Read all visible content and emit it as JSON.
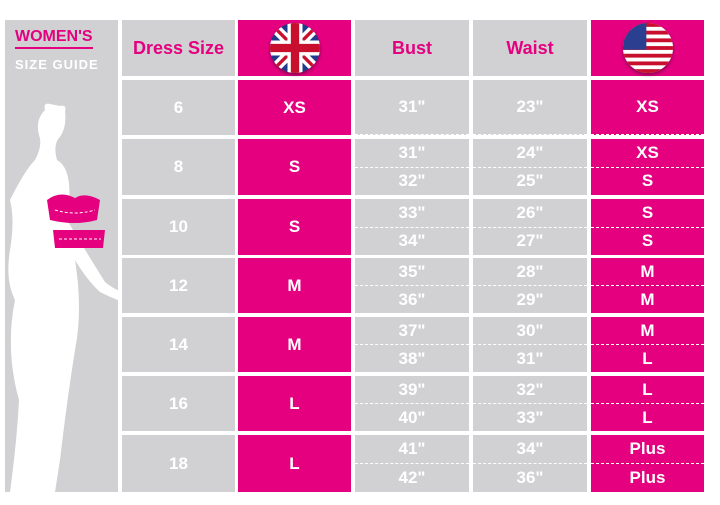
{
  "title": {
    "line1": "WOMEN'S",
    "line2": "SIZE GUIDE"
  },
  "colors": {
    "accent": "#e4007f",
    "panel": "#d1d1d3"
  },
  "headers": {
    "dress_size": "Dress Size",
    "uk": "uk-flag-icon",
    "bust": "Bust",
    "waist": "Waist",
    "us": "us-flag-icon"
  },
  "rows": [
    {
      "dress": "6",
      "uk": "XS",
      "bust": [
        "31\""
      ],
      "waist": [
        "23\""
      ],
      "us": [
        "XS"
      ]
    },
    {
      "dress": "8",
      "uk": "S",
      "bust": [
        "31\"",
        "32\""
      ],
      "waist": [
        "24\"",
        "25\""
      ],
      "us": [
        "XS",
        "S"
      ]
    },
    {
      "dress": "10",
      "uk": "S",
      "bust": [
        "33\"",
        "34\""
      ],
      "waist": [
        "26\"",
        "27\""
      ],
      "us": [
        "S",
        "S"
      ]
    },
    {
      "dress": "12",
      "uk": "M",
      "bust": [
        "35\"",
        "36\""
      ],
      "waist": [
        "28\"",
        "29\""
      ],
      "us": [
        "M",
        "M"
      ]
    },
    {
      "dress": "14",
      "uk": "M",
      "bust": [
        "37\"",
        "38\""
      ],
      "waist": [
        "30\"",
        "31\""
      ],
      "us": [
        "M",
        "L"
      ]
    },
    {
      "dress": "16",
      "uk": "L",
      "bust": [
        "39\"",
        "40\""
      ],
      "waist": [
        "32\"",
        "33\""
      ],
      "us": [
        "L",
        "L"
      ]
    },
    {
      "dress": "18",
      "uk": "L",
      "bust": [
        "41\"",
        "42\""
      ],
      "waist": [
        "34\"",
        "36\""
      ],
      "us": [
        "Plus",
        "Plus"
      ]
    }
  ]
}
